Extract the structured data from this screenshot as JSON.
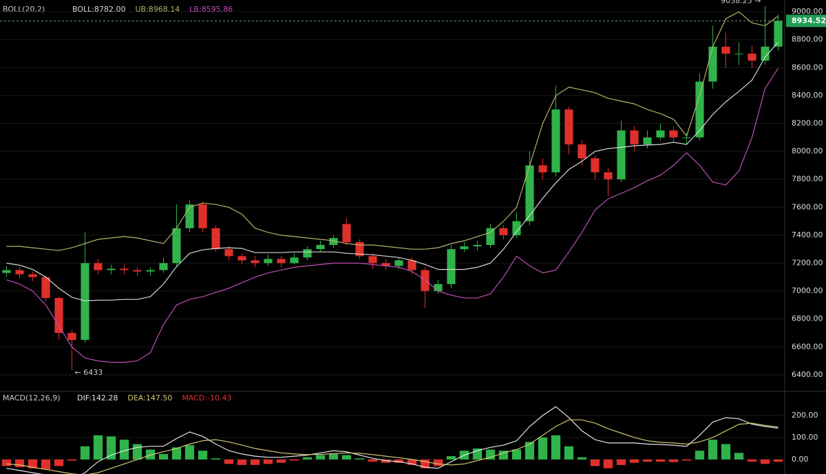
{
  "chart_data": [
    {
      "type": "candlestick",
      "indicator": "BOLL(20,2)",
      "open": [
        7130,
        7150,
        7120,
        7100,
        6950,
        6700,
        6650,
        7200,
        7150,
        7160,
        7150,
        7140,
        7150,
        7200,
        7450,
        7620,
        7450,
        7300,
        7250,
        7220,
        7200,
        7230,
        7200,
        7240,
        7300,
        7330,
        7480,
        7350,
        7250,
        7200,
        7180,
        7220,
        7150,
        7000,
        7050,
        7300,
        7320,
        7330,
        7450,
        7400,
        7500,
        7900,
        7850,
        8300,
        8050,
        7950,
        7850,
        7800,
        8150,
        8050,
        8100,
        8150,
        8100,
        8100,
        8500,
        8750,
        8700,
        8700,
        8650,
        8750
      ],
      "high": [
        7180,
        7170,
        7140,
        7110,
        6960,
        6720,
        7420,
        7230,
        7190,
        7190,
        7170,
        7170,
        7240,
        7620,
        7650,
        7640,
        7470,
        7320,
        7270,
        7250,
        7260,
        7250,
        7270,
        7320,
        7360,
        7400,
        7520,
        7370,
        7270,
        7230,
        7240,
        7240,
        7170,
        7080,
        7330,
        7350,
        7360,
        7480,
        7470,
        7560,
        8000,
        7950,
        8470,
        8320,
        8080,
        7970,
        7880,
        8220,
        8180,
        8150,
        8200,
        8180,
        8130,
        8560,
        8900,
        8850,
        8780,
        8760,
        9038.25,
        8980
      ],
      "low": [
        7100,
        7090,
        7070,
        6920,
        6650,
        6433,
        6630,
        7120,
        7120,
        7120,
        7110,
        7110,
        7130,
        7180,
        7420,
        7420,
        7280,
        7220,
        7190,
        7170,
        7180,
        7170,
        7190,
        7220,
        7280,
        7310,
        7330,
        7230,
        7160,
        7150,
        7160,
        7120,
        6880,
        6980,
        7020,
        7280,
        7290,
        7310,
        7370,
        7380,
        7470,
        7800,
        7820,
        7980,
        7900,
        7800,
        7680,
        7780,
        8000,
        8020,
        8080,
        8060,
        8050,
        8080,
        8450,
        8600,
        8620,
        8600,
        8620,
        8720
      ],
      "close": [
        7150,
        7120,
        7100,
        6950,
        6700,
        6650,
        7200,
        7150,
        7160,
        7150,
        7140,
        7150,
        7200,
        7450,
        7620,
        7450,
        7300,
        7250,
        7220,
        7200,
        7230,
        7200,
        7240,
        7300,
        7330,
        7380,
        7350,
        7250,
        7200,
        7180,
        7220,
        7150,
        7000,
        7050,
        7300,
        7320,
        7330,
        7450,
        7400,
        7500,
        7900,
        7850,
        8300,
        8050,
        7950,
        7850,
        7800,
        8150,
        8050,
        8100,
        8150,
        8100,
        8100,
        8500,
        8750,
        8700,
        8700,
        8650,
        8750,
        8934.52
      ],
      "up_color": "#2fb34a",
      "down_color": "#e0302c",
      "series": [
        {
          "name": "BOLL",
          "legend": "BOLL:8782.00",
          "color": "#d8d8d8",
          "values": [
            7200,
            7185,
            7155,
            7100,
            7020,
            6955,
            6930,
            6935,
            6935,
            6940,
            6940,
            6960,
            7050,
            7175,
            7270,
            7295,
            7305,
            7310,
            7305,
            7275,
            7275,
            7275,
            7280,
            7280,
            7280,
            7280,
            7270,
            7265,
            7260,
            7250,
            7240,
            7220,
            7190,
            7155,
            7155,
            7155,
            7170,
            7200,
            7300,
            7425,
            7540,
            7665,
            7775,
            7870,
            7930,
            8000,
            8020,
            8030,
            8040,
            8045,
            8050,
            8065,
            8050,
            8150,
            8265,
            8355,
            8430,
            8510,
            8675,
            8782
          ]
        },
        {
          "name": "UB",
          "legend": "UB:8968.14",
          "color": "#b8b46a",
          "values": [
            7320,
            7320,
            7310,
            7300,
            7290,
            7310,
            7340,
            7370,
            7380,
            7390,
            7380,
            7360,
            7340,
            7450,
            7600,
            7630,
            7620,
            7600,
            7550,
            7450,
            7420,
            7400,
            7390,
            7380,
            7370,
            7360,
            7340,
            7330,
            7330,
            7320,
            7310,
            7300,
            7300,
            7310,
            7340,
            7360,
            7390,
            7420,
            7500,
            7600,
            7900,
            8200,
            8400,
            8460,
            8440,
            8420,
            8380,
            8360,
            8340,
            8300,
            8270,
            8230,
            8110,
            8400,
            8750,
            8950,
            9000,
            8920,
            8900,
            8968.14
          ]
        },
        {
          "name": "LB",
          "legend": "LB:8595.86",
          "color": "#c04fb8",
          "values": [
            7080,
            7050,
            7000,
            6900,
            6750,
            6600,
            6520,
            6500,
            6490,
            6490,
            6500,
            6560,
            6760,
            6900,
            6940,
            6960,
            6990,
            7020,
            7060,
            7100,
            7130,
            7150,
            7170,
            7180,
            7190,
            7200,
            7200,
            7200,
            7190,
            7180,
            7170,
            7140,
            7080,
            7000,
            6970,
            6950,
            6950,
            6980,
            7100,
            7250,
            7180,
            7130,
            7150,
            7280,
            7420,
            7580,
            7660,
            7700,
            7740,
            7790,
            7830,
            7900,
            7990,
            7900,
            7780,
            7760,
            7860,
            8100,
            8450,
            8595.86
          ]
        }
      ],
      "annotations": {
        "max": "9038.25 →",
        "min": "← 6433"
      },
      "ylim": [
        6286,
        9084
      ],
      "yticks": [
        {
          "value": 6400,
          "label": "6400.00"
        },
        {
          "value": 6600,
          "label": "6600.00"
        },
        {
          "value": 6800,
          "label": "6800.00"
        },
        {
          "value": 7000,
          "label": "7000.00"
        },
        {
          "value": 7200,
          "label": "7200.00"
        },
        {
          "value": 7400,
          "label": "7400.00"
        },
        {
          "value": 7600,
          "label": "7600.00"
        },
        {
          "value": 7800,
          "label": "7800.00"
        },
        {
          "value": 8000,
          "label": "8000.00"
        },
        {
          "value": 8200,
          "label": "8200.00"
        },
        {
          "value": 8400,
          "label": "8400.00"
        },
        {
          "value": 8600,
          "label": "8600.00"
        },
        {
          "value": 8800,
          "label": "8800.00"
        },
        {
          "value": 9000,
          "label": "9000.00"
        }
      ],
      "grid": true
    },
    {
      "type": "macd",
      "indicator": "MACD(12,26,9)",
      "histogram": {
        "name": "MACD",
        "legend": "MACD:-10.43",
        "up_color": "#2fb34a",
        "down_color": "#e0302c",
        "values": [
          -30,
          -35,
          -40,
          -45,
          -30,
          -5,
          60,
          110,
          105,
          90,
          70,
          45,
          25,
          55,
          65,
          40,
          5,
          -20,
          -25,
          -25,
          -20,
          -15,
          -5,
          10,
          20,
          25,
          20,
          5,
          -10,
          -15,
          -15,
          -25,
          -40,
          -30,
          15,
          40,
          50,
          45,
          40,
          45,
          80,
          100,
          110,
          60,
          10,
          -30,
          -40,
          -25,
          -15,
          -10,
          -10,
          -12,
          -5,
          40,
          90,
          70,
          30,
          -10,
          -20,
          -10.43
        ]
      },
      "series": [
        {
          "name": "DIF",
          "legend": "DIF:142.28",
          "color": "#e8e8e8",
          "values": [
            -40,
            -50,
            -60,
            -70,
            -85,
            -90,
            -60,
            -10,
            20,
            40,
            55,
            60,
            60,
            95,
            125,
            105,
            70,
            40,
            25,
            15,
            10,
            10,
            15,
            20,
            30,
            40,
            35,
            20,
            5,
            -5,
            -10,
            -20,
            -35,
            -40,
            -10,
            20,
            40,
            55,
            65,
            85,
            150,
            200,
            240,
            190,
            130,
            90,
            75,
            75,
            75,
            70,
            68,
            65,
            60,
            110,
            170,
            190,
            185,
            160,
            150,
            142.28
          ]
        },
        {
          "name": "DEA",
          "legend": "DEA:147.50",
          "color": "#d6c977",
          "values": [
            -20,
            -25,
            -35,
            -45,
            -55,
            -65,
            -70,
            -60,
            -40,
            -20,
            0,
            20,
            35,
            50,
            70,
            85,
            90,
            80,
            65,
            50,
            40,
            30,
            25,
            22,
            23,
            27,
            30,
            28,
            22,
            15,
            8,
            0,
            -10,
            -20,
            -25,
            -20,
            -5,
            10,
            30,
            45,
            70,
            110,
            150,
            180,
            180,
            165,
            140,
            120,
            100,
            85,
            78,
            75,
            70,
            80,
            100,
            130,
            160,
            165,
            155,
            147.5
          ]
        }
      ],
      "ylim": [
        -66,
        306
      ],
      "yticks": [
        {
          "value": 0,
          "label": "0.00"
        },
        {
          "value": 100,
          "label": "100.00"
        },
        {
          "value": 200,
          "label": "200.00"
        }
      ],
      "grid": true
    }
  ]
}
